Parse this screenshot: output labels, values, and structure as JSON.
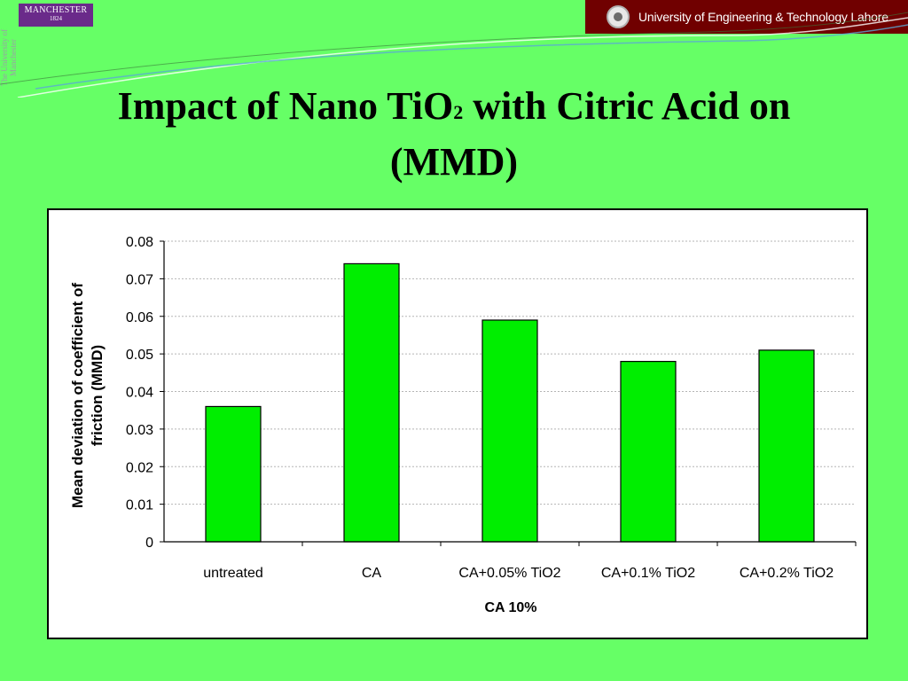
{
  "header": {
    "left_logo_name": "MANCHESTER",
    "left_logo_year": "1824",
    "left_side_text": "The University of Manchester",
    "right_banner_text": "University of Engineering & Technology Lahore"
  },
  "slide": {
    "title_part1": "Impact of Nano TiO",
    "title_subscript": "2",
    "title_part2": " with Citric Acid on",
    "title_line2": "(MMD)"
  },
  "colors": {
    "background": "#66ff66",
    "bar_fill": "#00ee00",
    "banner": "#700000",
    "logo": "#6a2a8a"
  },
  "chart_data": {
    "type": "bar",
    "categories": [
      "untreated",
      "CA",
      "CA+0.05% TiO2",
      "CA+0.1% TiO2",
      "CA+0.2% TiO2"
    ],
    "values": [
      0.036,
      0.074,
      0.059,
      0.048,
      0.051
    ],
    "xlabel": "CA 10%",
    "ylabel_line1": "Mean deviation of coefficient of",
    "ylabel_line2": "friction (MMD)",
    "ylim": [
      0,
      0.08
    ],
    "yticks": [
      "0",
      "0.01",
      "0.02",
      "0.03",
      "0.04",
      "0.05",
      "0.06",
      "0.07",
      "0.08"
    ],
    "grid": true,
    "legend": "none"
  }
}
